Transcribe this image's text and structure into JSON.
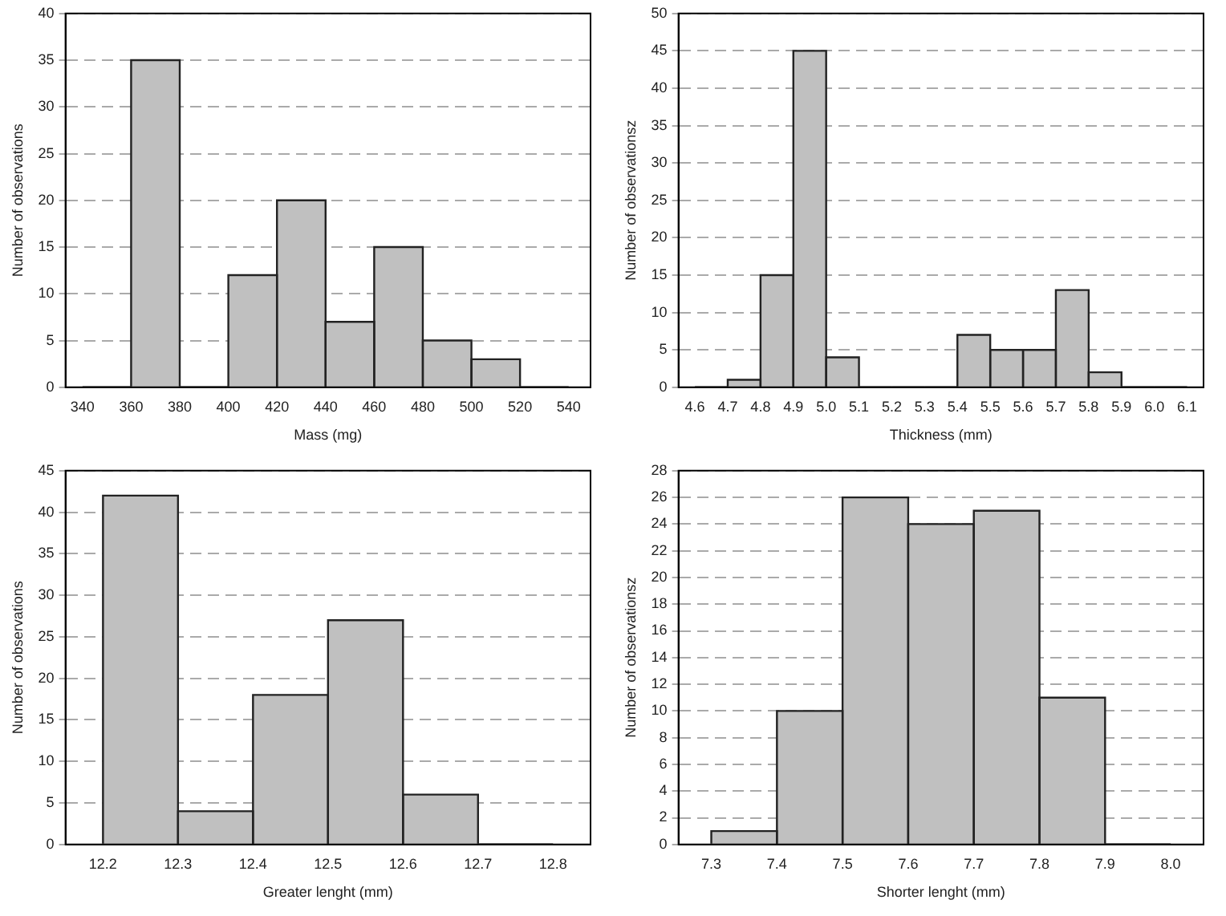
{
  "chart_data": [
    {
      "type": "histogram",
      "xlabel": "Mass (mg)",
      "ylabel": "Number of observations",
      "bins": [
        340,
        360,
        380,
        400,
        420,
        440,
        460,
        480,
        500,
        520,
        540
      ],
      "values": [
        0,
        35,
        0,
        12,
        20,
        7,
        15,
        5,
        3,
        0
      ],
      "color": "#c0c0c0",
      "xlim": [
        333,
        549
      ],
      "xticks": [
        340,
        360,
        380,
        400,
        420,
        440,
        460,
        480,
        500,
        520,
        540
      ],
      "ylim": [
        0,
        40
      ],
      "yticks": [
        0,
        5,
        10,
        15,
        20,
        25,
        30,
        35,
        40
      ],
      "grid": "y"
    },
    {
      "type": "histogram",
      "xlabel": "Thickness (mm)",
      "ylabel": "Number of observationsz",
      "bins": [
        4.6,
        4.7,
        4.8,
        4.9,
        5.0,
        5.1,
        5.2,
        5.3,
        5.4,
        5.5,
        5.6,
        5.7,
        5.8,
        5.9,
        6.0,
        6.1
      ],
      "values": [
        0,
        1,
        15,
        45,
        4,
        0,
        0,
        0,
        7,
        5,
        5,
        13,
        2,
        0,
        0
      ],
      "color": "#c0c0c0",
      "xlim": [
        4.55,
        6.15
      ],
      "xticks": [
        {
          "value": 4.6,
          "label": "4.6"
        },
        {
          "value": 4.7,
          "label": "4.7"
        },
        {
          "value": 4.8,
          "label": "4.8"
        },
        {
          "value": 4.9,
          "label": "4.9"
        },
        {
          "value": 5.0,
          "label": "5.0"
        },
        {
          "value": 5.1,
          "label": "5.1"
        },
        {
          "value": 5.2,
          "label": "5.2"
        },
        {
          "value": 5.3,
          "label": "5.3"
        },
        {
          "value": 5.4,
          "label": "5.4"
        },
        {
          "value": 5.5,
          "label": "5.5"
        },
        {
          "value": 5.6,
          "label": "5.6"
        },
        {
          "value": 5.7,
          "label": "5.7"
        },
        {
          "value": 5.8,
          "label": "5.8"
        },
        {
          "value": 5.9,
          "label": "5.9"
        },
        {
          "value": 6.0,
          "label": "6.0"
        },
        {
          "value": 6.1,
          "label": "6.1"
        }
      ],
      "ylim": [
        0,
        50
      ],
      "yticks": [
        0,
        5,
        10,
        15,
        20,
        25,
        30,
        35,
        40,
        45,
        50
      ],
      "grid": "y"
    },
    {
      "type": "histogram",
      "xlabel": "Greater lenght (mm)",
      "ylabel": "Number of observations",
      "bins": [
        12.2,
        12.3,
        12.4,
        12.5,
        12.6,
        12.7,
        12.8
      ],
      "values": [
        42,
        4,
        18,
        27,
        6,
        0
      ],
      "color": "#c0c0c0",
      "xlim": [
        12.15,
        12.85
      ],
      "xticks": [
        12.2,
        12.3,
        12.4,
        12.5,
        12.6,
        12.7,
        12.8
      ],
      "ylim": [
        0,
        45
      ],
      "yticks": [
        0,
        5,
        10,
        15,
        20,
        25,
        30,
        35,
        40,
        45
      ],
      "grid": "y"
    },
    {
      "type": "histogram",
      "xlabel": "Shorter lenght (mm)",
      "ylabel": "Number of observationsz",
      "bins": [
        7.3,
        7.4,
        7.5,
        7.6,
        7.7,
        7.8,
        7.9,
        8.0
      ],
      "values": [
        1,
        10,
        26,
        24,
        25,
        11,
        0
      ],
      "color": "#c0c0c0",
      "xlim": [
        7.25,
        8.05
      ],
      "xticks": [
        7.3,
        7.4,
        7.5,
        7.6,
        7.7,
        7.8,
        7.9,
        {
          "value": 8.0,
          "label": "8.0"
        }
      ],
      "ylim": [
        0,
        28
      ],
      "yticks": [
        0,
        2,
        4,
        6,
        8,
        10,
        12,
        14,
        16,
        18,
        20,
        22,
        24,
        26,
        28
      ],
      "grid": "y"
    }
  ]
}
